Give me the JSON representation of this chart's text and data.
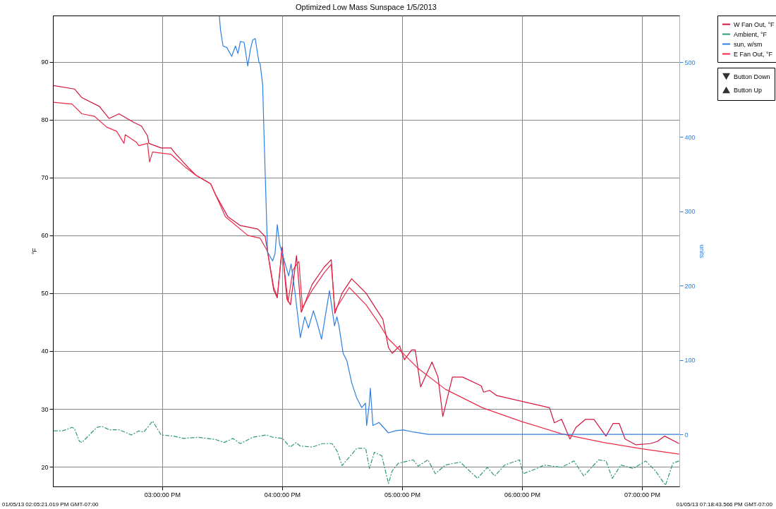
{
  "chart_data": {
    "type": "line",
    "title": "Optimized Low Mass Sunspace  1/5/2013",
    "ylabel": "°F",
    "y2label": "units",
    "annotations": [
      "01/05/13 02:05:21.019 PM GMT-07:00",
      "01/05/13 07:18:43.566 PM GMT-07:00"
    ],
    "xlim": [
      14.0892,
      19.3121
    ],
    "xticks": [
      {
        "value": 15,
        "label": "03:00:00 PM"
      },
      {
        "value": 16,
        "label": "04:00:00 PM"
      },
      {
        "value": 17,
        "label": "05:00:00 PM"
      },
      {
        "value": 18,
        "label": "06:00:00 PM"
      },
      {
        "value": 19,
        "label": "07:00:00 PM"
      }
    ],
    "ylim": [
      16.6,
      98
    ],
    "yticks": [
      20,
      30,
      40,
      50,
      60,
      70,
      80,
      90
    ],
    "y2lim": [
      -70,
      563
    ],
    "y2ticks": [
      0,
      100,
      200,
      300,
      400,
      500
    ],
    "grid": true,
    "legend": "top right",
    "series": [
      {
        "name": "W Fan Out, °F",
        "color": "#d4143c",
        "line_style": "solid",
        "x": [
          14.094,
          14.269,
          14.331,
          14.476,
          14.558,
          14.641,
          14.765,
          14.827,
          14.878,
          14.889,
          14.992,
          15.074,
          15.116,
          15.219,
          15.281,
          15.405,
          15.446,
          15.549,
          15.652,
          15.797,
          15.859,
          15.879,
          15.93,
          15.96,
          16.0,
          16.04,
          16.07,
          16.12,
          16.16,
          16.25,
          16.35,
          16.41,
          16.44,
          16.5,
          16.58,
          16.7,
          16.84,
          16.887,
          16.918,
          16.98,
          17.02,
          17.08,
          17.11,
          17.155,
          17.25,
          17.3,
          17.34,
          17.42,
          17.505,
          17.66,
          17.68,
          17.73,
          17.79,
          18.23,
          18.27,
          18.33,
          18.4,
          18.45,
          18.53,
          18.6,
          18.7,
          18.76,
          18.81,
          18.86,
          18.95,
          19.07,
          19.13,
          19.19,
          19.31
        ],
        "values": [
          85.9,
          85.3,
          83.8,
          82.3,
          80.2,
          81.0,
          79.5,
          78.9,
          77.2,
          75.9,
          75.1,
          75.1,
          74.0,
          71.7,
          70.4,
          68.9,
          67.0,
          63.2,
          61.7,
          61.1,
          59.8,
          57.2,
          50.5,
          49.2,
          58,
          49,
          48,
          56.5,
          46.7,
          51.5,
          54.5,
          55.8,
          46.5,
          50,
          52.5,
          50,
          45.5,
          40.6,
          39.6,
          40.9,
          38.5,
          40.2,
          40.2,
          33.8,
          38.1,
          35.5,
          28.7,
          35.5,
          35.5,
          34.0,
          32.9,
          33.2,
          32.3,
          30.2,
          27.6,
          28.2,
          24.8,
          26.8,
          28.2,
          28.2,
          25.3,
          27.5,
          27.5,
          24.8,
          23.8,
          24.0,
          24.4,
          25.3,
          24.0
        ]
      },
      {
        "name": "Ambient, °F",
        "color": "#2e9a6e",
        "line_style": "dashed",
        "x": [
          14.094,
          14.166,
          14.249,
          14.269,
          14.31,
          14.331,
          14.455,
          14.497,
          14.558,
          14.641,
          14.744,
          14.806,
          14.847,
          14.92,
          14.992,
          15.095,
          15.178,
          15.302,
          15.446,
          15.518,
          15.59,
          15.652,
          15.755,
          15.869,
          15.921,
          16.004,
          16.066,
          16.118,
          16.149,
          16.252,
          16.335,
          16.417,
          16.459,
          16.5,
          16.603,
          16.624,
          16.697,
          16.728,
          16.769,
          16.831,
          16.887,
          16.918,
          16.969,
          17.093,
          17.134,
          17.216,
          17.278,
          17.361,
          17.485,
          17.629,
          17.711,
          17.773,
          17.856,
          17.979,
          18.01,
          18.124,
          18.186,
          18.33,
          18.433,
          18.515,
          18.639,
          18.701,
          18.753,
          18.825,
          18.928,
          19.031,
          19.113,
          19.196,
          19.258,
          19.309
        ],
        "values": [
          26.2,
          26.2,
          26.8,
          26.6,
          24.4,
          24.2,
          26.8,
          27.0,
          26.4,
          26.4,
          25.5,
          26.2,
          26.0,
          27.9,
          25.5,
          25.3,
          24.9,
          25.1,
          24.7,
          24.2,
          24.9,
          24.0,
          25.1,
          25.5,
          25.1,
          24.9,
          23.4,
          24.2,
          23.6,
          23.4,
          24.0,
          24.0,
          22.7,
          20.2,
          22.7,
          23.2,
          23.2,
          19.7,
          22.5,
          21.9,
          17.1,
          19.3,
          20.6,
          21.2,
          20.1,
          21.2,
          18.8,
          20.3,
          20.8,
          18.0,
          19.9,
          18.4,
          20.3,
          21.2,
          18.8,
          19.7,
          20.3,
          19.9,
          21.0,
          18.4,
          21.2,
          21.0,
          18.0,
          20.3,
          19.7,
          21.0,
          19.3,
          16.8,
          20.6,
          21.0
        ]
      },
      {
        "name": "sun, w/sm",
        "color": "#2f7fe0",
        "axis": "y2",
        "line_style": "solid",
        "x": [
          15.477,
          15.487,
          15.508,
          15.539,
          15.58,
          15.611,
          15.632,
          15.652,
          15.683,
          15.714,
          15.735,
          15.755,
          15.776,
          15.807,
          15.817,
          15.838,
          15.848,
          15.859,
          15.879,
          15.921,
          15.941,
          15.96,
          15.98,
          16.055,
          16.075,
          16.106,
          16.152,
          16.189,
          16.22,
          16.261,
          16.292,
          16.329,
          16.395,
          16.437,
          16.457,
          16.474,
          16.509,
          16.54,
          16.581,
          16.622,
          16.664,
          16.695,
          16.705,
          16.726,
          16.736,
          16.757,
          16.808,
          16.886,
          16.95,
          17.01,
          17.1,
          17.22,
          19.312
        ],
        "values": [
          562,
          543,
          522,
          520,
          508,
          522,
          512,
          528,
          527,
          495,
          517,
          530,
          532,
          500,
          498,
          470,
          411,
          351,
          245,
          233,
          243,
          282,
          255,
          213,
          229,
          193,
          130,
          158,
          143,
          166,
          150,
          128,
          193,
          146,
          158,
          146,
          109,
          99,
          69,
          49,
          36,
          42,
          12,
          39,
          62,
          12,
          16,
          2,
          5,
          6,
          3,
          0,
          0
        ]
      },
      {
        "name": "E Fan Out, °F",
        "color": "#ee2a48",
        "line_style": "solid",
        "x": [
          14.094,
          14.249,
          14.331,
          14.434,
          14.538,
          14.62,
          14.682,
          14.692,
          14.785,
          14.806,
          14.878,
          14.895,
          14.92,
          15.074,
          15.198,
          15.281,
          15.405,
          15.446,
          15.528,
          15.714,
          15.817,
          15.879,
          15.93,
          15.96,
          16.0,
          16.05,
          16.09,
          16.14,
          16.17,
          16.25,
          16.35,
          16.41,
          16.44,
          16.56,
          16.7,
          16.8,
          16.887,
          17.134,
          17.361,
          17.67,
          18.0,
          18.33,
          18.68,
          19.0,
          19.31
        ],
        "values": [
          83.0,
          82.7,
          81.0,
          80.6,
          78.7,
          78.0,
          75.9,
          77.4,
          76.1,
          75.5,
          75.9,
          72.7,
          74.4,
          74.0,
          71.7,
          70.4,
          68.9,
          67.0,
          63.2,
          60.0,
          59.5,
          57.2,
          51,
          49.5,
          57.5,
          48.5,
          54,
          55.5,
          47.5,
          50.5,
          53.5,
          55,
          47,
          51,
          48,
          45,
          42.1,
          37.0,
          33.4,
          30.2,
          27.8,
          25.7,
          24.2,
          23.1,
          22.2
        ]
      },
      {
        "name": "Button Down",
        "color": "#333333",
        "type": "scatter",
        "marker": "triangle-down"
      },
      {
        "name": "Button Up",
        "color": "#333333",
        "type": "scatter",
        "marker": "triangle"
      }
    ]
  }
}
